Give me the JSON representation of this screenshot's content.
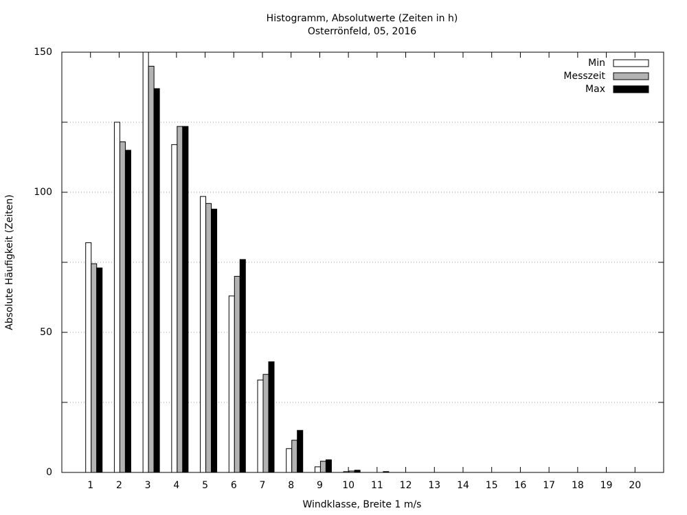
{
  "chart_data": {
    "type": "bar",
    "title": "Histogramm, Absolutwerte (Zeiten in h)",
    "subtitle": "Osterrönfeld, 05, 2016",
    "x_label": "Windklasse, Breite 1 m/s",
    "y_label": "Absolute Häufigkeit (Zeiten)",
    "categories": [
      "1",
      "2",
      "3",
      "4",
      "5",
      "6",
      "7",
      "8",
      "9",
      "10",
      "11",
      "12",
      "13",
      "14",
      "15",
      "16",
      "17",
      "18",
      "19",
      "20"
    ],
    "series": [
      {
        "name": "Min",
        "color": "#ffffff",
        "values": [
          82,
          125,
          150,
          117,
          98.5,
          63,
          33,
          8.5,
          2,
          0.3,
          0,
          0,
          0,
          0,
          0,
          0,
          0,
          0,
          0,
          0
        ]
      },
      {
        "name": "Messzeit",
        "color": "#b3b3b3",
        "values": [
          74.5,
          118,
          145,
          123.5,
          96,
          70,
          35,
          11.5,
          4,
          0.5,
          0,
          0,
          0,
          0,
          0,
          0,
          0,
          0,
          0,
          0
        ]
      },
      {
        "name": "Max",
        "color": "#000000",
        "values": [
          73,
          115,
          137,
          123.5,
          94,
          76,
          39.5,
          15,
          4.5,
          0.8,
          0.3,
          0,
          0,
          0,
          0,
          0,
          0,
          0,
          0,
          0
        ]
      }
    ],
    "ylim": [
      0,
      150
    ],
    "yticks": [
      0,
      50,
      100,
      150
    ],
    "y_minor_ticks": [
      25,
      75,
      125
    ],
    "grid": true,
    "legend": "top-right"
  }
}
